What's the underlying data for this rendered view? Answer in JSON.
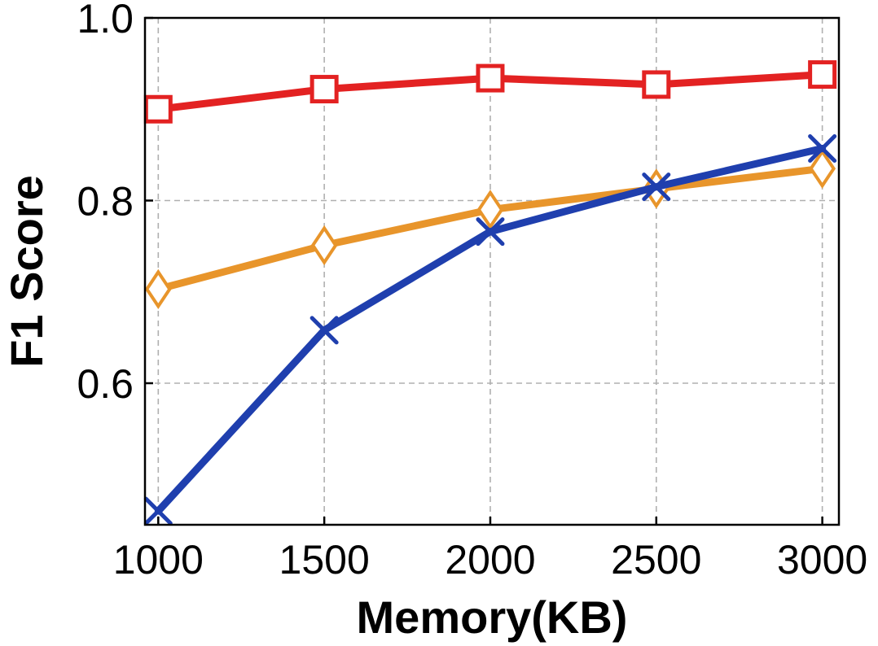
{
  "chart_data": {
    "type": "line",
    "x": [
      1000,
      1500,
      2000,
      2500,
      3000
    ],
    "xlabel": "Memory(KB)",
    "ylabel": "F1 Score",
    "xlim": [
      960,
      3050
    ],
    "ylim": [
      0.445,
      1.0
    ],
    "xticks": [
      "1000",
      "1500",
      "2000",
      "2500",
      "3000"
    ],
    "yticks": [
      "0.6",
      "0.8",
      "1.0"
    ],
    "grid": true,
    "series": [
      {
        "color": "#e32222",
        "marker": "square",
        "values": [
          0.9,
          0.922,
          0.934,
          0.927,
          0.938
        ]
      },
      {
        "color": "#e8952b",
        "marker": "diamond",
        "values": [
          0.703,
          0.751,
          0.79,
          0.813,
          0.835
        ]
      },
      {
        "color": "#1f3fae",
        "marker": "x",
        "values": [
          0.46,
          0.658,
          0.766,
          0.815,
          0.857
        ]
      }
    ]
  }
}
